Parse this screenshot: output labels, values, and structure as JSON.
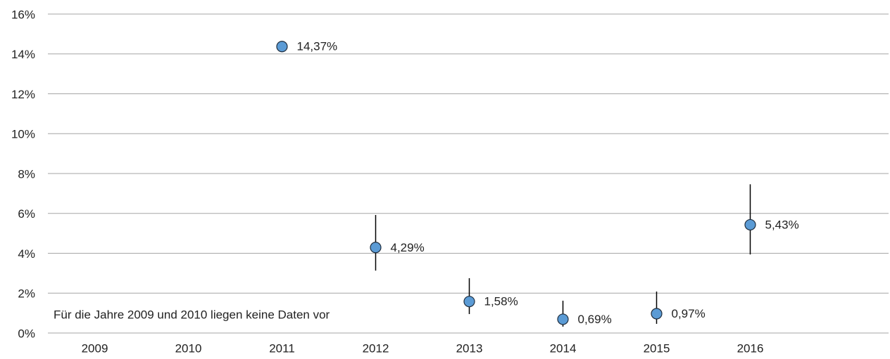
{
  "chart_data": {
    "type": "scatter",
    "categories": [
      "2009",
      "2010",
      "2011",
      "2012",
      "2013",
      "2014",
      "2015",
      "2016"
    ],
    "series": [
      {
        "color": "#5b9bd5",
        "values": [
          null,
          null,
          14.37,
          4.29,
          1.58,
          0.69,
          0.97,
          5.43
        ],
        "value_labels": [
          null,
          null,
          "14,37%",
          "4,29%",
          "1,58%",
          "0,69%",
          "0,97%",
          "5,43%"
        ],
        "error_plus": [
          null,
          null,
          null,
          1.63,
          1.17,
          0.93,
          1.11,
          2.03
        ],
        "error_minus": [
          null,
          null,
          null,
          1.16,
          0.63,
          0.37,
          0.51,
          1.49
        ]
      }
    ],
    "ylim": [
      0,
      16
    ],
    "yticks": [
      {
        "value": 0,
        "label": "0%"
      },
      {
        "value": 2,
        "label": "2%"
      },
      {
        "value": 4,
        "label": "4%"
      },
      {
        "value": 6,
        "label": "6%"
      },
      {
        "value": 8,
        "label": "8%"
      },
      {
        "value": 10,
        "label": "10%"
      },
      {
        "value": 12,
        "label": "12%"
      },
      {
        "value": 14,
        "label": "14%"
      },
      {
        "value": 16,
        "label": "16%"
      }
    ],
    "grid": true,
    "annotation": "Für die Jahre 2009 und 2010 liegen keine Daten vor"
  }
}
